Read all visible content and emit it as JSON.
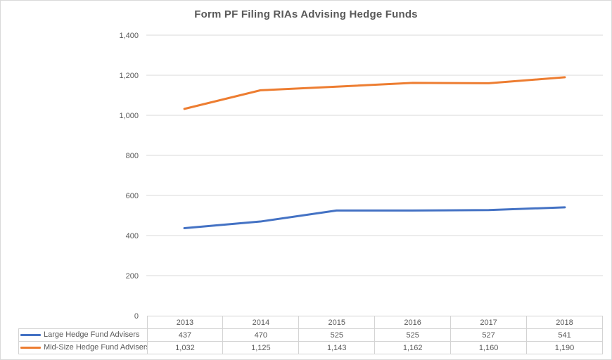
{
  "title": "Form PF Filing RIAs Advising Hedge Funds",
  "colors": {
    "series_blue": "#4472C4",
    "series_orange": "#ED7D31",
    "gridline": "#D9D9D9",
    "table_border": "#D3D3D3",
    "text": "#595959",
    "chart_border": "#D9D9D9",
    "background": "#FFFFFF"
  },
  "chart_data": {
    "type": "line",
    "title": "Form PF Filing RIAs Advising Hedge Funds",
    "categories": [
      "2013",
      "2014",
      "2015",
      "2016",
      "2017",
      "2018"
    ],
    "series": [
      {
        "name": "Large Hedge Fund Advisers",
        "color": "#4472C4",
        "values": [
          437,
          470,
          525,
          525,
          527,
          541
        ],
        "values_display": [
          "437",
          "470",
          "525",
          "525",
          "527",
          "541"
        ]
      },
      {
        "name": "Mid-Size Hedge Fund Advisers",
        "color": "#ED7D31",
        "values": [
          1032,
          1125,
          1143,
          1162,
          1160,
          1190
        ],
        "values_display": [
          "1,032",
          "1,125",
          "1,143",
          "1,162",
          "1,160",
          "1,190"
        ]
      }
    ],
    "xlabel": "",
    "ylabel": "",
    "ylim": [
      0,
      1400
    ],
    "ytick_step": 200,
    "ytick_labels": [
      "0",
      "200",
      "400",
      "600",
      "800",
      "1,000",
      "1,200",
      "1,400"
    ],
    "grid": true,
    "legend_position": "data-table-left",
    "data_table": true
  }
}
